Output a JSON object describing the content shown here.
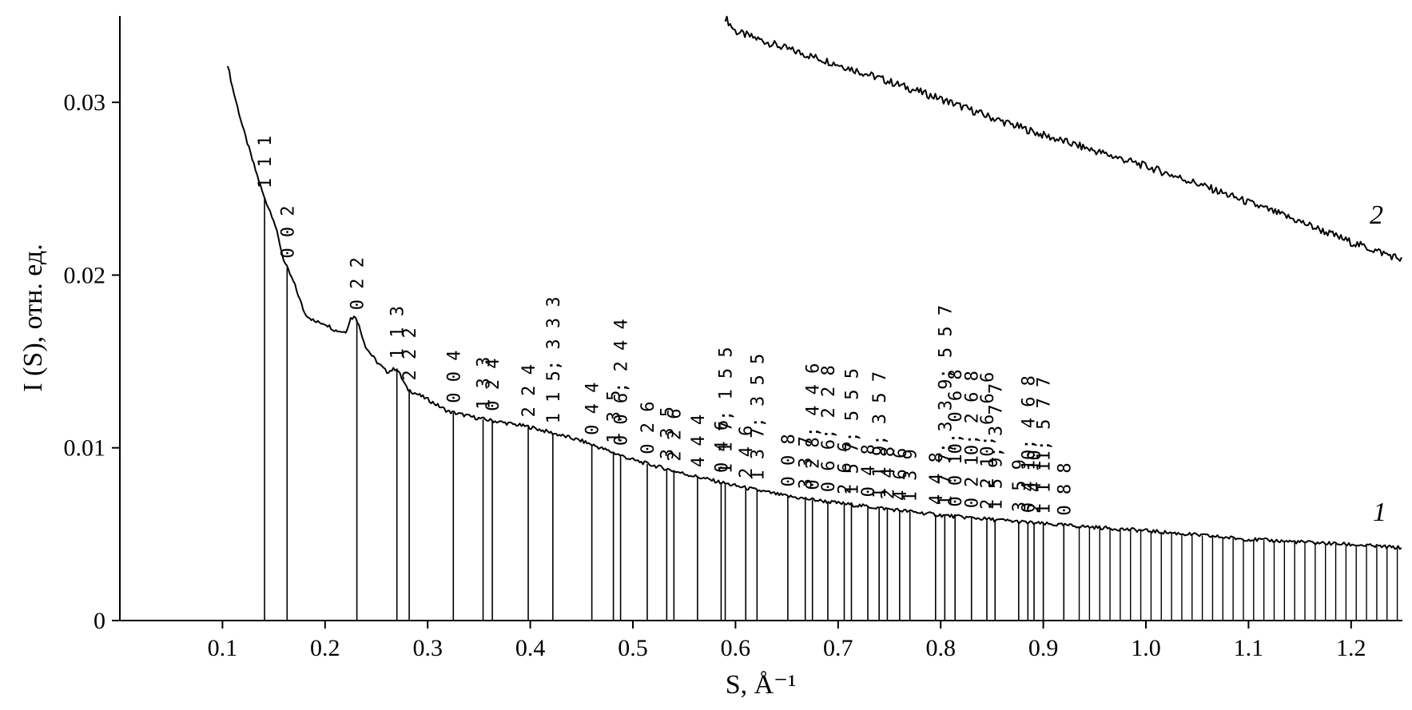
{
  "chart_data": {
    "type": "line",
    "title": "",
    "xlabel": "S, Å⁻¹",
    "ylabel": "I (S), отн. ед.",
    "xlim": [
      0.0,
      1.25
    ],
    "ylim": [
      0.0,
      0.035
    ],
    "x_ticks": [
      "0.1",
      "0.2",
      "0.3",
      "0.4",
      "0.5",
      "0.6",
      "0.7",
      "0.8",
      "0.9",
      "1.0",
      "1.1",
      "1.2"
    ],
    "y_ticks": [
      "0",
      "0.01",
      "0.02",
      "0.03"
    ],
    "grid": false,
    "series": [
      {
        "name": "1",
        "x": [
          0.105,
          0.11,
          0.12,
          0.13,
          0.14,
          0.15,
          0.16,
          0.17,
          0.18,
          0.19,
          0.2,
          0.21,
          0.22,
          0.225,
          0.23,
          0.235,
          0.24,
          0.25,
          0.26,
          0.27,
          0.28,
          0.3,
          0.32,
          0.35,
          0.4,
          0.45,
          0.5,
          0.55,
          0.6,
          0.65,
          0.7,
          0.8,
          0.9,
          1.0,
          1.1,
          1.2,
          1.25
        ],
        "y": [
          0.0322,
          0.0308,
          0.0285,
          0.0265,
          0.0246,
          0.0232,
          0.0208,
          0.0195,
          0.0178,
          0.0173,
          0.0172,
          0.0168,
          0.0167,
          0.0175,
          0.0176,
          0.0167,
          0.0158,
          0.015,
          0.0144,
          0.0146,
          0.0134,
          0.0128,
          0.0121,
          0.0117,
          0.0112,
          0.0104,
          0.0093,
          0.0085,
          0.0078,
          0.0072,
          0.0068,
          0.0061,
          0.0056,
          0.0052,
          0.0047,
          0.0044,
          0.0042
        ]
      },
      {
        "name": "2",
        "x": [
          0.59,
          0.6,
          0.65,
          0.7,
          0.75,
          0.8,
          0.85,
          0.9,
          0.95,
          1.0,
          1.05,
          1.1,
          1.15,
          1.2,
          1.25
        ],
        "y": [
          0.0349,
          0.0341,
          0.0331,
          0.0322,
          0.0312,
          0.0302,
          0.0291,
          0.0281,
          0.0272,
          0.0263,
          0.0253,
          0.0242,
          0.0231,
          0.0219,
          0.0209
        ]
      }
    ],
    "reflections": {
      "labeled": [
        {
          "label": "1 1 1",
          "s": 0.141
        },
        {
          "label": "0 0 2",
          "s": 0.163
        },
        {
          "label": "0 2 2",
          "s": 0.231
        },
        {
          "label": "1 1 3",
          "s": 0.27
        },
        {
          "label": "2 2 2",
          "s": 0.282
        },
        {
          "label": "0 0 4",
          "s": 0.325
        },
        {
          "label": "1 3 3",
          "s": 0.354
        },
        {
          "label": "0 2 4",
          "s": 0.363
        },
        {
          "label": "2 2 4",
          "s": 0.398
        },
        {
          "label": "1 1 5; 3 3 3",
          "s": 0.422
        },
        {
          "label": "0 4 4",
          "s": 0.46
        },
        {
          "label": "1 3 5",
          "s": 0.481
        },
        {
          "label": "0 0 6; 2 4 4",
          "s": 0.488
        },
        {
          "label": "0 2 6",
          "s": 0.514
        },
        {
          "label": "3 3 5",
          "s": 0.533
        },
        {
          "label": "2 2 6",
          "s": 0.54
        },
        {
          "label": "4 4 4",
          "s": 0.563
        },
        {
          "label": "0 4 6",
          "s": 0.586
        },
        {
          "label": "1 1 7; 1 5 5",
          "s": 0.59
        },
        {
          "label": "2 4 6",
          "s": 0.61
        },
        {
          "label": "1 3 7; 3 5 5",
          "s": 0.621
        },
        {
          "label": "0 0 8",
          "s": 0.651
        },
        {
          "label": "3 3 7",
          "s": 0.668
        },
        {
          "label": "0 2 8; 4 4 6",
          "s": 0.675
        },
        {
          "label": "0 6 6; 2 2 8",
          "s": 0.69
        },
        {
          "label": "2 6 6",
          "s": 0.706
        },
        {
          "label": "1 5 7; 5 5 5",
          "s": 0.713
        },
        {
          "label": "0 4 8",
          "s": 0.729
        },
        {
          "label": "1 1 9; 3 5 7",
          "s": 0.74
        },
        {
          "label": "2 4 8",
          "s": 0.748
        },
        {
          "label": "4 6 6",
          "s": 0.76
        },
        {
          "label": "1 3 9",
          "s": 0.77
        },
        {
          "label": "4 4 8",
          "s": 0.795
        },
        {
          "label": "1 7 7; 3 3 9; 5 5 7",
          "s": 0.804
        },
        {
          "label": "0 0 10; 0 6 8",
          "s": 0.814
        },
        {
          "label": "0 2 10; 2 6 8",
          "s": 0.83
        },
        {
          "label": "2 2 10; 6 6 6",
          "s": 0.845
        },
        {
          "label": "1 5 9; 3 7 7",
          "s": 0.853
        },
        {
          "label": "3 5 9",
          "s": 0.876
        },
        {
          "label": "0 4 10; 4 6 8",
          "s": 0.885
        },
        {
          "label": "2 4 10",
          "s": 0.891
        },
        {
          "label": "1 1 11; 5 7 7",
          "s": 0.9
        },
        {
          "label": "0 8 8",
          "s": 0.92
        }
      ],
      "unlabeled_s": [
        0.935,
        0.945,
        0.955,
        0.965,
        0.975,
        0.985,
        0.995,
        1.005,
        1.015,
        1.025,
        1.035,
        1.045,
        1.055,
        1.065,
        1.075,
        1.085,
        1.095,
        1.105,
        1.115,
        1.125,
        1.135,
        1.145,
        1.155,
        1.165,
        1.175,
        1.185,
        1.195,
        1.205,
        1.215,
        1.225,
        1.235,
        1.245
      ]
    }
  }
}
